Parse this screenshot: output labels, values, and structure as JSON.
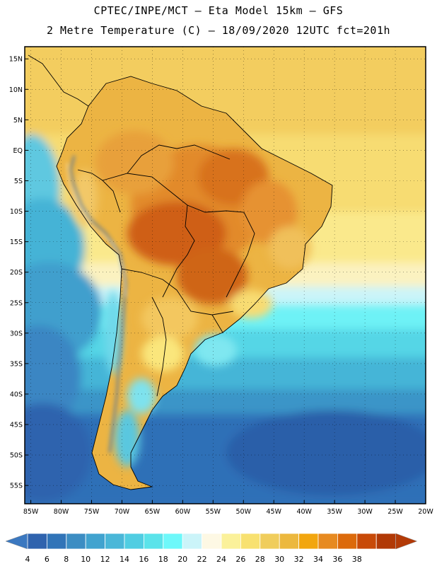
{
  "header": {
    "line1": "CPTEC/INPE/MCT –  Eta Model 15km – GFS",
    "line2": "2 Metre Temperature (C) – 18/09/2020 12UTC fct=201h"
  },
  "axes": {
    "lat_labels": [
      "15N",
      "10N",
      "5N",
      "EQ",
      "5S",
      "10S",
      "15S",
      "20S",
      "25S",
      "30S",
      "35S",
      "40S",
      "45S",
      "50S",
      "55S"
    ],
    "lat_values": [
      15,
      10,
      5,
      0,
      -5,
      -10,
      -15,
      -20,
      -25,
      -30,
      -35,
      -40,
      -45,
      -50,
      -55
    ],
    "lon_labels": [
      "85W",
      "80W",
      "75W",
      "70W",
      "65W",
      "60W",
      "55W",
      "50W",
      "45W",
      "40W",
      "35W",
      "30W",
      "25W",
      "20W"
    ],
    "lon_values": [
      -85,
      -80,
      -75,
      -70,
      -65,
      -60,
      -55,
      -50,
      -45,
      -40,
      -35,
      -30,
      -25,
      -20
    ],
    "lon_range": [
      -86,
      -20
    ],
    "lat_range": [
      -58,
      17
    ]
  },
  "colorbar": {
    "labels": [
      "4",
      "6",
      "8",
      "10",
      "12",
      "14",
      "16",
      "18",
      "20",
      "22",
      "24",
      "26",
      "28",
      "30",
      "32",
      "34",
      "36",
      "38"
    ],
    "colors": [
      "#2f63ae",
      "#3174b8",
      "#3c8dc3",
      "#41a3cf",
      "#4ab7d8",
      "#50cde2",
      "#5be3ea",
      "#6ef8fa",
      "#cbf4f9",
      "#fdf8e4",
      "#fbf19a",
      "#f8e170",
      "#f0cd5c",
      "#ecb83e",
      "#f2a60f",
      "#e78a20",
      "#dc6a0b",
      "#c84a08",
      "#b13906"
    ],
    "under_color": "#3b78c0",
    "over_color": "#b33a07"
  }
}
